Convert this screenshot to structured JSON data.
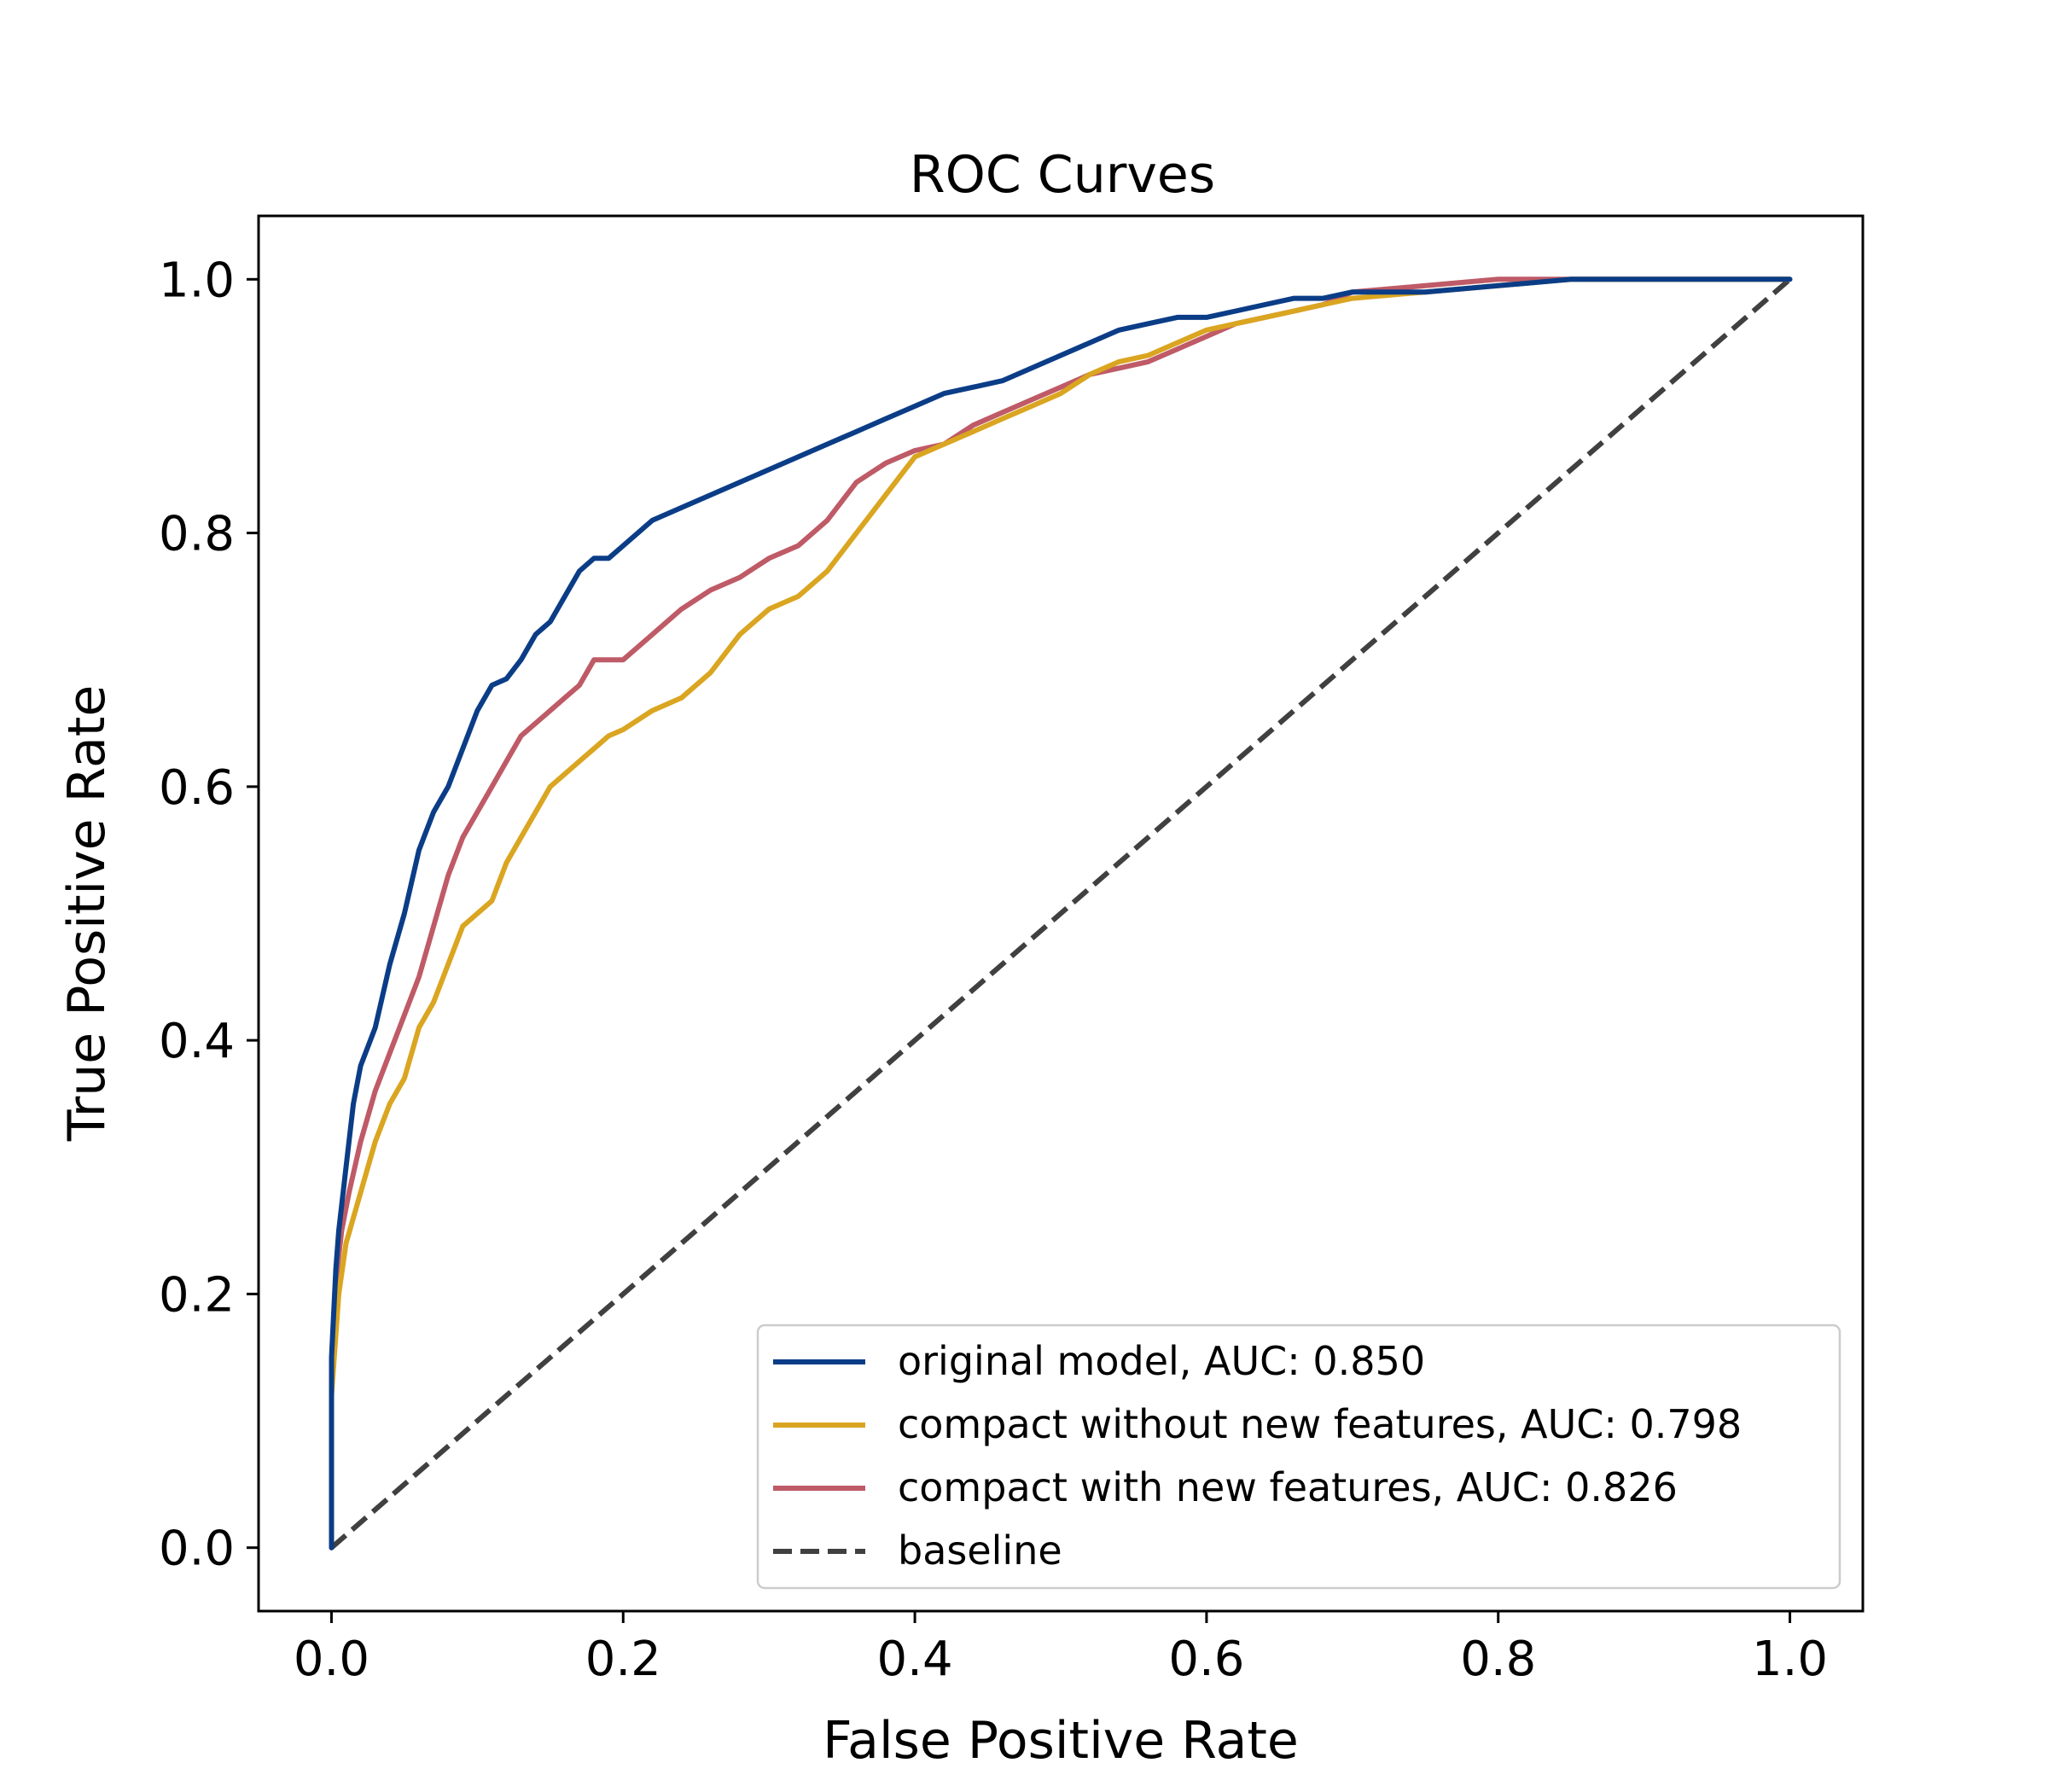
{
  "chart_data": {
    "type": "line",
    "title": "ROC Curves",
    "xlabel": "False Positive Rate",
    "ylabel": "True Positive Rate",
    "xlim": [
      -0.05,
      1.05
    ],
    "ylim": [
      -0.05,
      1.05
    ],
    "xticks": [
      "0.0",
      "0.2",
      "0.4",
      "0.6",
      "0.8",
      "1.0"
    ],
    "yticks": [
      "0.0",
      "0.2",
      "0.4",
      "0.6",
      "0.8",
      "1.0"
    ],
    "grid": false,
    "legend_position": "lower-right",
    "series": [
      {
        "name": "original model, AUC: 0.850",
        "color": "#0b3d87",
        "style": "solid",
        "x": [
          0,
          0,
          0.003,
          0.005,
          0.01,
          0.015,
          0.02,
          0.03,
          0.04,
          0.05,
          0.06,
          0.07,
          0.08,
          0.09,
          0.1,
          0.11,
          0.12,
          0.13,
          0.14,
          0.15,
          0.16,
          0.17,
          0.18,
          0.19,
          0.2,
          0.22,
          0.24,
          0.26,
          0.28,
          0.3,
          0.32,
          0.34,
          0.36,
          0.38,
          0.4,
          0.42,
          0.44,
          0.46,
          0.48,
          0.5,
          0.52,
          0.54,
          0.56,
          0.58,
          0.6,
          0.62,
          0.64,
          0.66,
          0.68,
          0.7,
          0.75,
          0.8,
          0.85,
          0.9,
          0.95,
          1.0
        ],
        "y": [
          0,
          0.15,
          0.22,
          0.25,
          0.3,
          0.35,
          0.38,
          0.41,
          0.46,
          0.5,
          0.55,
          0.58,
          0.6,
          0.63,
          0.66,
          0.68,
          0.685,
          0.7,
          0.72,
          0.73,
          0.75,
          0.77,
          0.78,
          0.78,
          0.79,
          0.81,
          0.82,
          0.83,
          0.84,
          0.85,
          0.86,
          0.87,
          0.88,
          0.89,
          0.9,
          0.91,
          0.915,
          0.92,
          0.93,
          0.94,
          0.95,
          0.96,
          0.965,
          0.97,
          0.97,
          0.975,
          0.98,
          0.985,
          0.985,
          0.99,
          0.99,
          0.995,
          1.0,
          1.0,
          1.0,
          1.0
        ]
      },
      {
        "name": "compact without new features, AUC: 0.798",
        "color": "#daa520",
        "style": "solid",
        "x": [
          0,
          0,
          0.005,
          0.01,
          0.02,
          0.03,
          0.04,
          0.05,
          0.06,
          0.07,
          0.08,
          0.09,
          0.1,
          0.11,
          0.12,
          0.13,
          0.14,
          0.15,
          0.16,
          0.17,
          0.18,
          0.19,
          0.2,
          0.22,
          0.24,
          0.26,
          0.28,
          0.3,
          0.32,
          0.34,
          0.36,
          0.38,
          0.4,
          0.42,
          0.44,
          0.46,
          0.48,
          0.5,
          0.52,
          0.54,
          0.56,
          0.58,
          0.6,
          0.62,
          0.64,
          0.66,
          0.68,
          0.7,
          0.75,
          0.8,
          0.85,
          0.9,
          0.95,
          1.0
        ],
        "y": [
          0,
          0.12,
          0.2,
          0.24,
          0.28,
          0.32,
          0.35,
          0.37,
          0.41,
          0.43,
          0.46,
          0.49,
          0.5,
          0.51,
          0.54,
          0.56,
          0.58,
          0.6,
          0.61,
          0.62,
          0.63,
          0.64,
          0.645,
          0.66,
          0.67,
          0.69,
          0.72,
          0.74,
          0.75,
          0.77,
          0.8,
          0.83,
          0.86,
          0.87,
          0.88,
          0.89,
          0.9,
          0.91,
          0.925,
          0.935,
          0.94,
          0.95,
          0.96,
          0.965,
          0.97,
          0.975,
          0.98,
          0.985,
          0.99,
          0.995,
          1.0,
          1.0,
          1.0,
          1.0
        ]
      },
      {
        "name": "compact with new features, AUC: 0.826",
        "color": "#bf5a67",
        "style": "solid",
        "x": [
          0,
          0,
          0.003,
          0.007,
          0.012,
          0.02,
          0.03,
          0.04,
          0.05,
          0.06,
          0.07,
          0.08,
          0.09,
          0.1,
          0.11,
          0.12,
          0.13,
          0.14,
          0.15,
          0.16,
          0.17,
          0.18,
          0.19,
          0.2,
          0.22,
          0.24,
          0.26,
          0.28,
          0.3,
          0.32,
          0.34,
          0.36,
          0.38,
          0.4,
          0.42,
          0.44,
          0.46,
          0.48,
          0.5,
          0.52,
          0.54,
          0.56,
          0.58,
          0.6,
          0.62,
          0.64,
          0.66,
          0.68,
          0.7,
          0.75,
          0.8,
          0.85,
          0.9,
          0.95,
          1.0
        ],
        "y": [
          0,
          0.13,
          0.21,
          0.25,
          0.28,
          0.32,
          0.36,
          0.39,
          0.42,
          0.45,
          0.49,
          0.53,
          0.56,
          0.58,
          0.6,
          0.62,
          0.64,
          0.65,
          0.66,
          0.67,
          0.68,
          0.7,
          0.7,
          0.7,
          0.72,
          0.74,
          0.755,
          0.765,
          0.78,
          0.79,
          0.81,
          0.84,
          0.855,
          0.865,
          0.87,
          0.885,
          0.895,
          0.905,
          0.915,
          0.925,
          0.93,
          0.935,
          0.945,
          0.955,
          0.965,
          0.97,
          0.975,
          0.98,
          0.99,
          0.995,
          1.0,
          1.0,
          1.0,
          1.0,
          1.0
        ]
      },
      {
        "name": "baseline",
        "color": "#404040",
        "style": "dashed",
        "x": [
          0,
          1
        ],
        "y": [
          0,
          1
        ]
      }
    ]
  }
}
